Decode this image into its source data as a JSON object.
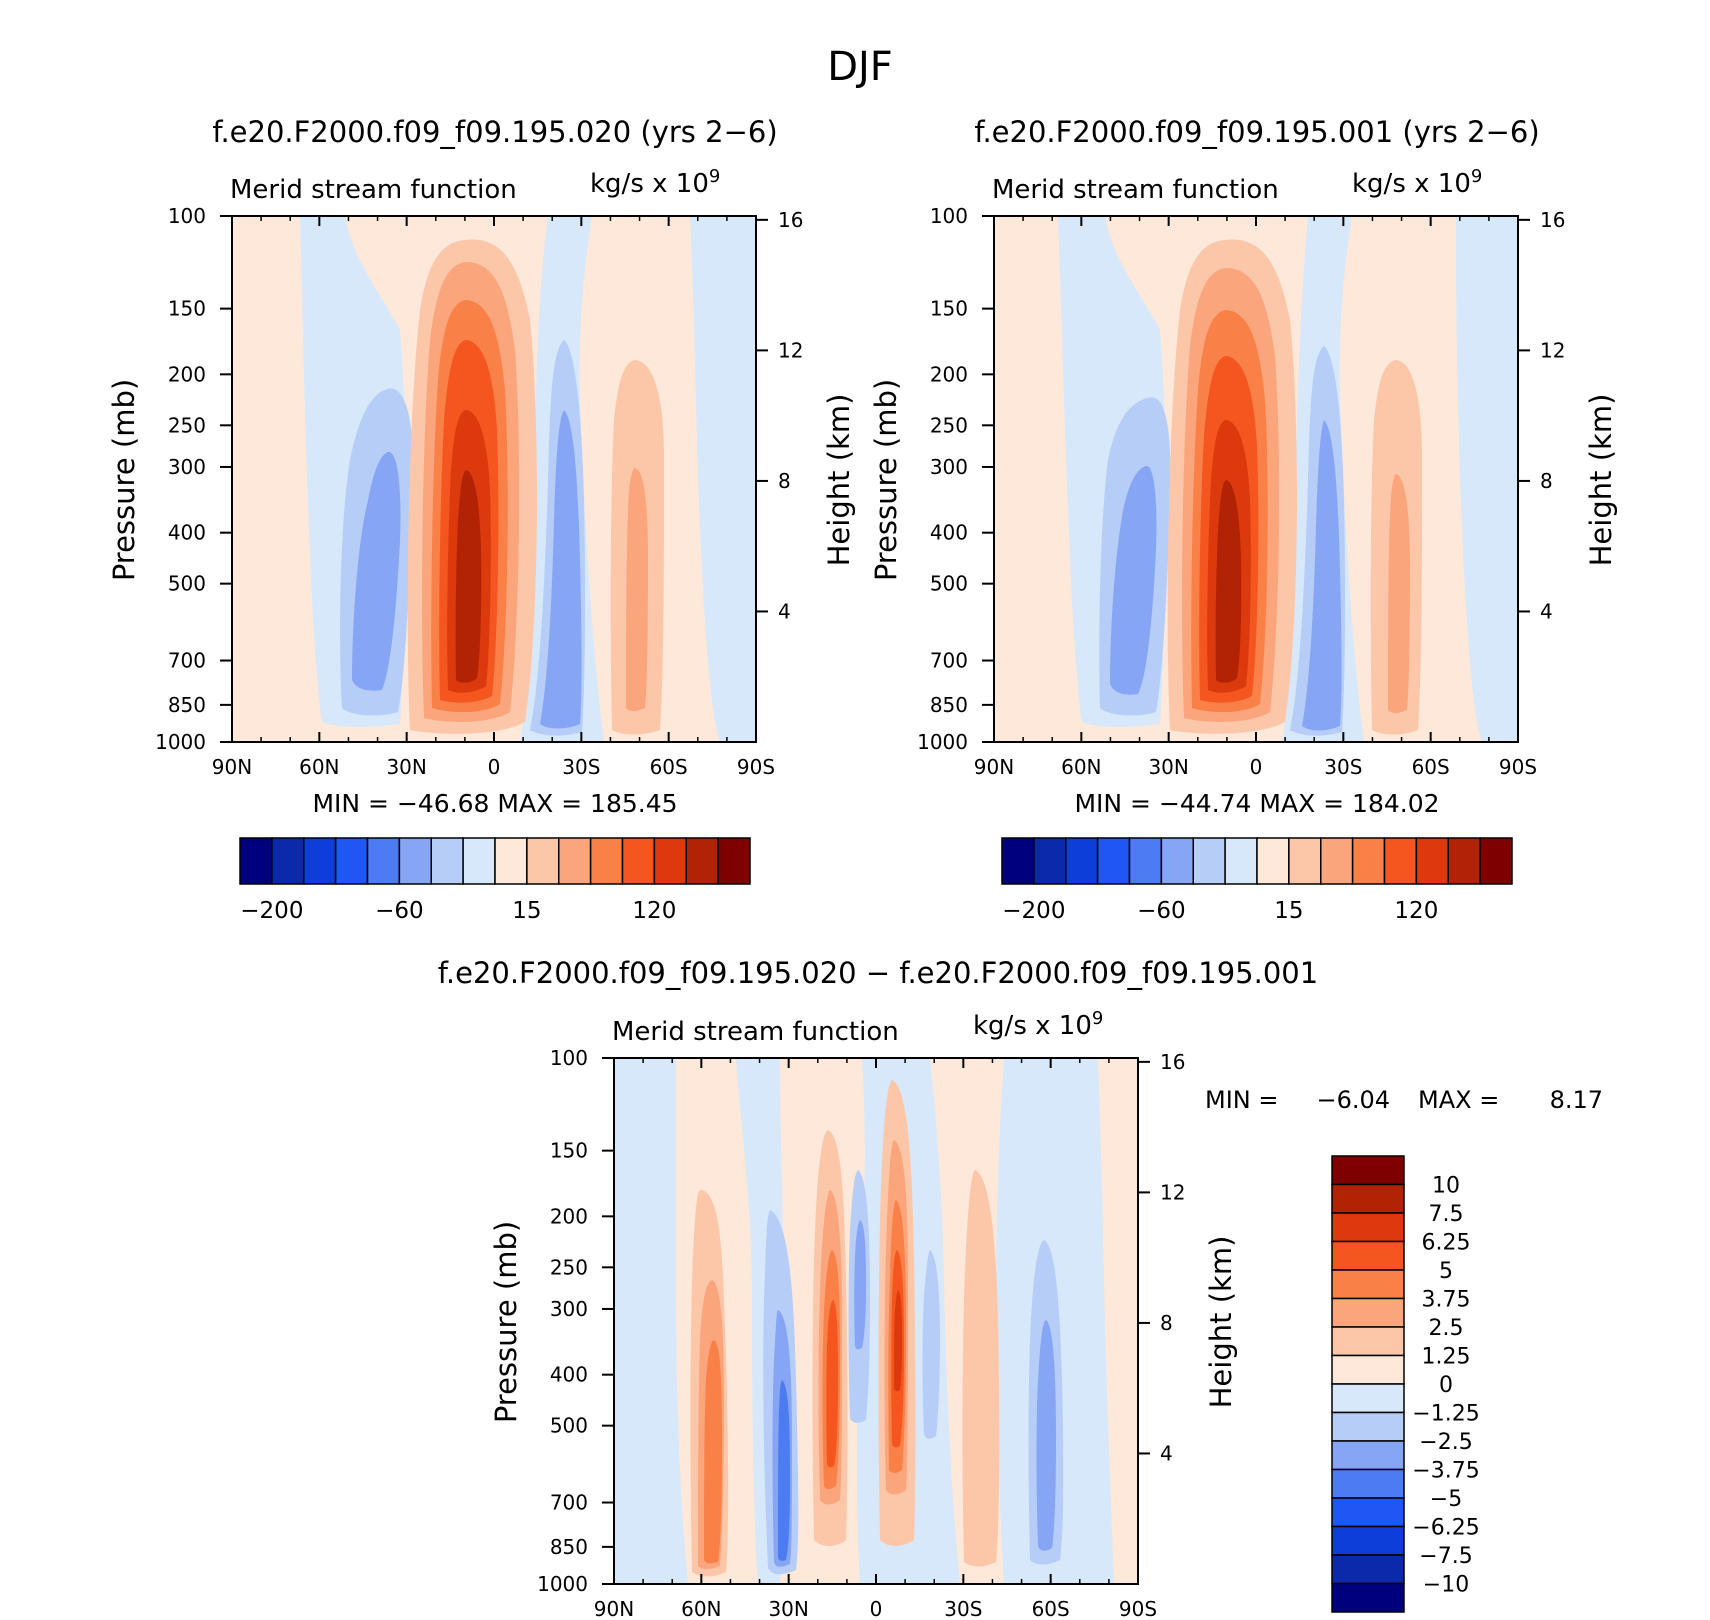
{
  "figure_title": "DJF",
  "colors": {
    "level_fills": [
      "#00007f",
      "#0a2aab",
      "#0d3fd8",
      "#1f57f4",
      "#4d7bf1",
      "#86a6f5",
      "#b6cdf8",
      "#d7e8fa",
      "#fde8da",
      "#fcc6a9",
      "#fba57c",
      "#f98148",
      "#f5551f",
      "#dc3a0c",
      "#b22305",
      "#7f0000"
    ],
    "diff_fills": [
      "#00007f",
      "#0a2aab",
      "#0d3fd8",
      "#1f57f4",
      "#4d7bf1",
      "#86a6f5",
      "#b6cdf8",
      "#d7e8fa",
      "#fde8da",
      "#fcc6a9",
      "#fba57c",
      "#f98148",
      "#f5551f",
      "#dc3a0c",
      "#b22305",
      "#7f0000"
    ]
  },
  "chart_data": [
    {
      "id": "top-left",
      "type": "heatmap",
      "title": "f.e20.F2000.f09_f09.195.020 (yrs 2−6)",
      "subtitle": "Merid stream function",
      "units": "kg/s x 10",
      "units_sup": "9",
      "ylabel": "Pressure (mb)",
      "ylabel_right": "Height (km)",
      "x_ticks": [
        "90N",
        "60N",
        "30N",
        "0",
        "30S",
        "60S",
        "90S"
      ],
      "y_ticks": [
        "100",
        "150",
        "200",
        "250",
        "300",
        "400",
        "500",
        "700",
        "850",
        "1000"
      ],
      "y_tick_values": [
        100,
        150,
        200,
        250,
        300,
        400,
        500,
        700,
        850,
        1000
      ],
      "right_ticks": [
        "16",
        "12",
        "8",
        "4"
      ],
      "right_tick_values": [
        16,
        12,
        8,
        4
      ],
      "stats_text": "MIN = −46.68   MAX = 185.45",
      "min": -46.68,
      "max": 185.45,
      "colorbar_labels": [
        "−200",
        "−60",
        "15",
        "120"
      ],
      "cells": [
        {
          "lat": 40,
          "p_top": 250,
          "level": 6
        },
        {
          "lat": 40,
          "p_top": 300,
          "level": 5
        },
        {
          "lat": 12,
          "p_top": 110,
          "level": 9
        },
        {
          "lat": 12,
          "p_top": 140,
          "level": 10
        },
        {
          "lat": 12,
          "p_top": 180,
          "level": 11
        },
        {
          "lat": 12,
          "p_top": 220,
          "level": 12
        },
        {
          "lat": 12,
          "p_top": 260,
          "level": 13
        },
        {
          "lat": 12,
          "p_top": 310,
          "level": 14
        },
        {
          "lat": -22,
          "p_top": 180,
          "level": 6
        },
        {
          "lat": -22,
          "p_top": 260,
          "level": 5
        },
        {
          "lat": -48,
          "p_top": 210,
          "level": 9
        },
        {
          "lat": -48,
          "p_top": 310,
          "level": 10
        }
      ]
    },
    {
      "id": "top-right",
      "type": "heatmap",
      "title": "f.e20.F2000.f09_f09.195.001 (yrs 2−6)",
      "subtitle": "Merid stream function",
      "units": "kg/s x 10",
      "units_sup": "9",
      "ylabel": "Pressure (mb)",
      "ylabel_right": "Height (km)",
      "x_ticks": [
        "90N",
        "60N",
        "30N",
        "0",
        "30S",
        "60S",
        "90S"
      ],
      "y_ticks": [
        "100",
        "150",
        "200",
        "250",
        "300",
        "400",
        "500",
        "700",
        "850",
        "1000"
      ],
      "y_tick_values": [
        100,
        150,
        200,
        250,
        300,
        400,
        500,
        700,
        850,
        1000
      ],
      "right_ticks": [
        "16",
        "12",
        "8",
        "4"
      ],
      "right_tick_values": [
        16,
        12,
        8,
        4
      ],
      "stats_text": "MIN = −44.74   MAX = 184.02",
      "min": -44.74,
      "max": 184.02,
      "colorbar_labels": [
        "−200",
        "−60",
        "15",
        "120"
      ],
      "cells": [
        {
          "lat": 40,
          "p_top": 240,
          "level": 6
        },
        {
          "lat": 40,
          "p_top": 320,
          "level": 5
        },
        {
          "lat": 12,
          "p_top": 110,
          "level": 9
        },
        {
          "lat": 12,
          "p_top": 140,
          "level": 10
        },
        {
          "lat": 12,
          "p_top": 180,
          "level": 11
        },
        {
          "lat": 12,
          "p_top": 220,
          "level": 12
        },
        {
          "lat": 12,
          "p_top": 270,
          "level": 13
        },
        {
          "lat": 12,
          "p_top": 330,
          "level": 14
        },
        {
          "lat": -23,
          "p_top": 190,
          "level": 6
        },
        {
          "lat": -23,
          "p_top": 270,
          "level": 5
        },
        {
          "lat": -48,
          "p_top": 220,
          "level": 9
        },
        {
          "lat": -48,
          "p_top": 320,
          "level": 10
        }
      ]
    },
    {
      "id": "bottom-diff",
      "type": "heatmap",
      "title": "f.e20.F2000.f09_f09.195.020 − f.e20.F2000.f09_f09.195.001",
      "subtitle": "Merid stream function",
      "units": "kg/s x 10",
      "units_sup": "9",
      "ylabel": "Pressure (mb)",
      "ylabel_right": "Height (km)",
      "x_ticks": [
        "90N",
        "60N",
        "30N",
        "0",
        "30S",
        "60S",
        "90S"
      ],
      "y_ticks": [
        "100",
        "150",
        "200",
        "250",
        "300",
        "400",
        "500",
        "700",
        "850",
        "1000"
      ],
      "y_tick_values": [
        100,
        150,
        200,
        250,
        300,
        400,
        500,
        700,
        850,
        1000
      ],
      "right_ticks": [
        "16",
        "12",
        "8",
        "4"
      ],
      "right_tick_values": [
        16,
        12,
        8,
        4
      ],
      "stats_min_label": "MIN =",
      "stats_min_value": "−6.04",
      "stats_max_label": "MAX =",
      "stats_max_value": "8.17",
      "min": -6.04,
      "max": 8.17,
      "colorbar_labels": [
        "10",
        "7.5",
        "6.25",
        "5",
        "3.75",
        "2.5",
        "1.25",
        "0",
        "−1.25",
        "−2.5",
        "−3.75",
        "−5",
        "−6.25",
        "−7.5",
        "−10"
      ]
    }
  ]
}
